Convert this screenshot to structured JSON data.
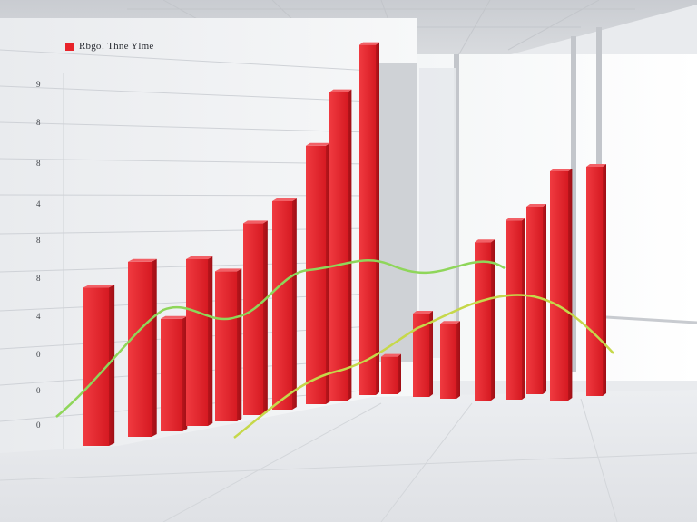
{
  "scene": {
    "description_kind": "photo-like 3D render of red bar chart in office room",
    "accent_color": "#e8232a",
    "line_color": "#8fd65a",
    "wall_color": "#f1f2f4",
    "floor_color": "#e6e7ea"
  },
  "legend": {
    "label": "Rbgo! Thne Ylme",
    "swatch_color": "#e8232a"
  },
  "axis": {
    "tick_labels": [
      "9",
      "8",
      "8",
      "4",
      "8",
      "8",
      "4",
      "0",
      "0",
      "0"
    ]
  },
  "bars": [
    {
      "id": 1,
      "value": 0.38
    },
    {
      "id": 2,
      "value": 0.42
    },
    {
      "id": 3,
      "value": 0.27
    },
    {
      "id": 4,
      "value": 0.4
    },
    {
      "id": 5,
      "value": 0.36
    },
    {
      "id": 6,
      "value": 0.46
    },
    {
      "id": 7,
      "value": 0.5
    },
    {
      "id": 8,
      "value": 0.62
    },
    {
      "id": 9,
      "value": 0.74
    },
    {
      "id": 10,
      "value": 0.84
    },
    {
      "id": 11,
      "value": 0.09
    },
    {
      "id": 12,
      "value": 0.2
    },
    {
      "id": 13,
      "value": 0.18
    },
    {
      "id": 14,
      "value": 0.38
    },
    {
      "id": 15,
      "value": 0.43
    },
    {
      "id": 16,
      "value": 0.45
    },
    {
      "id": 17,
      "value": 0.55
    },
    {
      "id": 18,
      "value": 0.55
    }
  ]
}
